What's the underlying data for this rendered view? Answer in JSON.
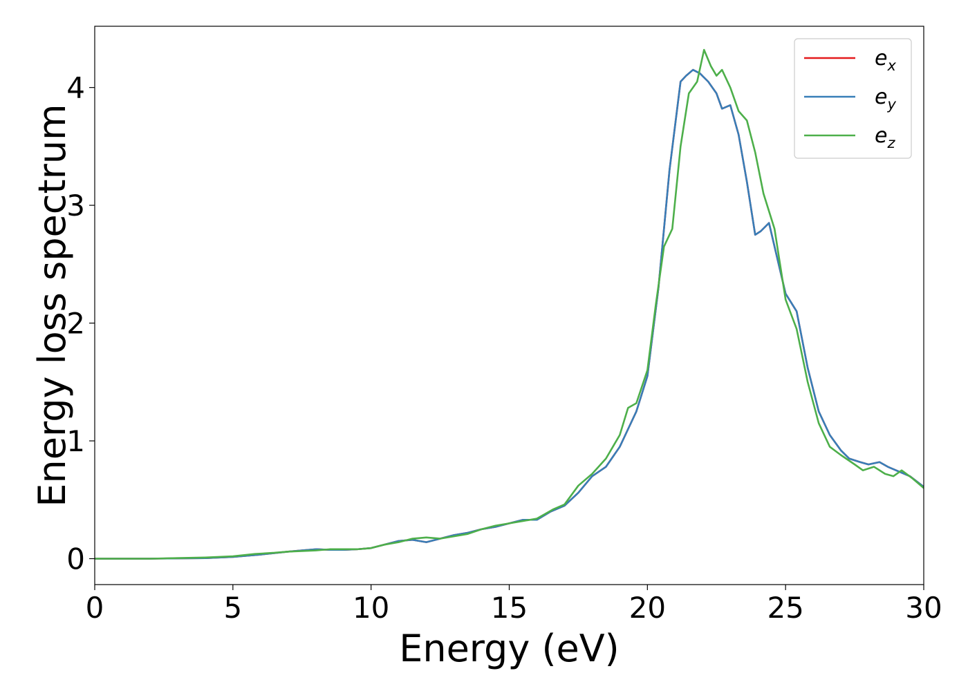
{
  "chart_data": {
    "type": "line",
    "xlabel": "Energy (eV)",
    "ylabel": "Energy loss spectrum",
    "xlim": [
      0,
      30
    ],
    "ylim": [
      -0.22,
      4.52
    ],
    "xticks": [
      0,
      5,
      10,
      15,
      20,
      25,
      30
    ],
    "yticks": [
      0,
      1,
      2,
      3,
      4
    ],
    "grid": false,
    "legend_position": "top-right",
    "series": [
      {
        "name": "e_x",
        "legend": {
          "base": "e",
          "sub": "x"
        },
        "color": "#e41a1c",
        "x": [
          0,
          2,
          4,
          5,
          6,
          7,
          7.5,
          8,
          8.5,
          9,
          9.5,
          10,
          10.5,
          11,
          11.5,
          12,
          12.5,
          13,
          13.5,
          14,
          14.5,
          15,
          15.5,
          16,
          16.5,
          17,
          17.5,
          18,
          18.5,
          19,
          19.3,
          19.6,
          20,
          20.4,
          20.8,
          21.2,
          21.4,
          21.65,
          21.9,
          22.2,
          22.5,
          22.7,
          23,
          23.3,
          23.6,
          23.9,
          24.1,
          24.4,
          24.7,
          25,
          25.4,
          25.8,
          26.2,
          26.6,
          27,
          27.3,
          27.7,
          28,
          28.4,
          28.7,
          29,
          29.5,
          30
        ],
        "y": [
          0,
          0,
          0.005,
          0.015,
          0.035,
          0.06,
          0.07,
          0.08,
          0.075,
          0.075,
          0.08,
          0.09,
          0.12,
          0.15,
          0.16,
          0.14,
          0.17,
          0.2,
          0.22,
          0.25,
          0.27,
          0.3,
          0.33,
          0.33,
          0.4,
          0.45,
          0.56,
          0.7,
          0.78,
          0.95,
          1.1,
          1.25,
          1.55,
          2.3,
          3.3,
          4.05,
          4.1,
          4.15,
          4.12,
          4.05,
          3.95,
          3.82,
          3.85,
          3.6,
          3.2,
          2.75,
          2.78,
          2.85,
          2.55,
          2.25,
          2.1,
          1.62,
          1.25,
          1.05,
          0.92,
          0.85,
          0.82,
          0.8,
          0.82,
          0.78,
          0.75,
          0.7,
          0.61
        ]
      },
      {
        "name": "e_y",
        "legend": {
          "base": "e",
          "sub": "y"
        },
        "color": "#377eb8",
        "x": [
          0,
          2,
          4,
          5,
          6,
          7,
          7.5,
          8,
          8.5,
          9,
          9.5,
          10,
          10.5,
          11,
          11.5,
          12,
          12.5,
          13,
          13.5,
          14,
          14.5,
          15,
          15.5,
          16,
          16.5,
          17,
          17.5,
          18,
          18.5,
          19,
          19.3,
          19.6,
          20,
          20.4,
          20.8,
          21.2,
          21.4,
          21.65,
          21.9,
          22.2,
          22.5,
          22.7,
          23,
          23.3,
          23.6,
          23.9,
          24.1,
          24.4,
          24.7,
          25,
          25.4,
          25.8,
          26.2,
          26.6,
          27,
          27.3,
          27.7,
          28,
          28.4,
          28.7,
          29,
          29.5,
          30
        ],
        "y": [
          0,
          0,
          0.005,
          0.015,
          0.035,
          0.06,
          0.07,
          0.08,
          0.075,
          0.075,
          0.08,
          0.09,
          0.12,
          0.15,
          0.16,
          0.14,
          0.17,
          0.2,
          0.22,
          0.25,
          0.27,
          0.3,
          0.33,
          0.33,
          0.4,
          0.45,
          0.56,
          0.7,
          0.78,
          0.95,
          1.1,
          1.25,
          1.55,
          2.3,
          3.3,
          4.05,
          4.1,
          4.15,
          4.12,
          4.05,
          3.95,
          3.82,
          3.85,
          3.6,
          3.2,
          2.75,
          2.78,
          2.85,
          2.55,
          2.25,
          2.1,
          1.62,
          1.25,
          1.05,
          0.92,
          0.85,
          0.82,
          0.8,
          0.82,
          0.78,
          0.75,
          0.7,
          0.61
        ]
      },
      {
        "name": "e_z",
        "legend": {
          "base": "e",
          "sub": "z"
        },
        "color": "#4daf4a",
        "x": [
          0,
          2,
          4,
          5,
          5.8,
          6.5,
          7,
          7.5,
          8,
          8.5,
          9,
          9.5,
          10,
          10.5,
          11,
          11.5,
          12,
          12.5,
          13,
          13.5,
          14,
          14.5,
          15,
          15.5,
          16,
          16.3,
          16.6,
          17,
          17.5,
          18,
          18.5,
          19,
          19.3,
          19.6,
          20,
          20.3,
          20.6,
          20.9,
          21.2,
          21.5,
          21.8,
          22.05,
          22.3,
          22.5,
          22.7,
          23,
          23.3,
          23.6,
          23.9,
          24.2,
          24.6,
          25,
          25.4,
          25.8,
          26.2,
          26.6,
          27,
          27.5,
          27.8,
          28.2,
          28.6,
          28.9,
          29.2,
          29.6,
          30
        ],
        "y": [
          0,
          0,
          0.01,
          0.02,
          0.04,
          0.05,
          0.06,
          0.065,
          0.07,
          0.08,
          0.08,
          0.08,
          0.09,
          0.12,
          0.14,
          0.17,
          0.18,
          0.17,
          0.19,
          0.21,
          0.25,
          0.28,
          0.3,
          0.32,
          0.34,
          0.38,
          0.42,
          0.46,
          0.62,
          0.72,
          0.85,
          1.05,
          1.28,
          1.32,
          1.6,
          2.15,
          2.65,
          2.8,
          3.5,
          3.95,
          4.05,
          4.32,
          4.18,
          4.1,
          4.15,
          4.0,
          3.8,
          3.72,
          3.45,
          3.1,
          2.8,
          2.2,
          1.95,
          1.5,
          1.15,
          0.95,
          0.88,
          0.8,
          0.75,
          0.78,
          0.72,
          0.7,
          0.75,
          0.68,
          0.6
        ]
      }
    ]
  }
}
